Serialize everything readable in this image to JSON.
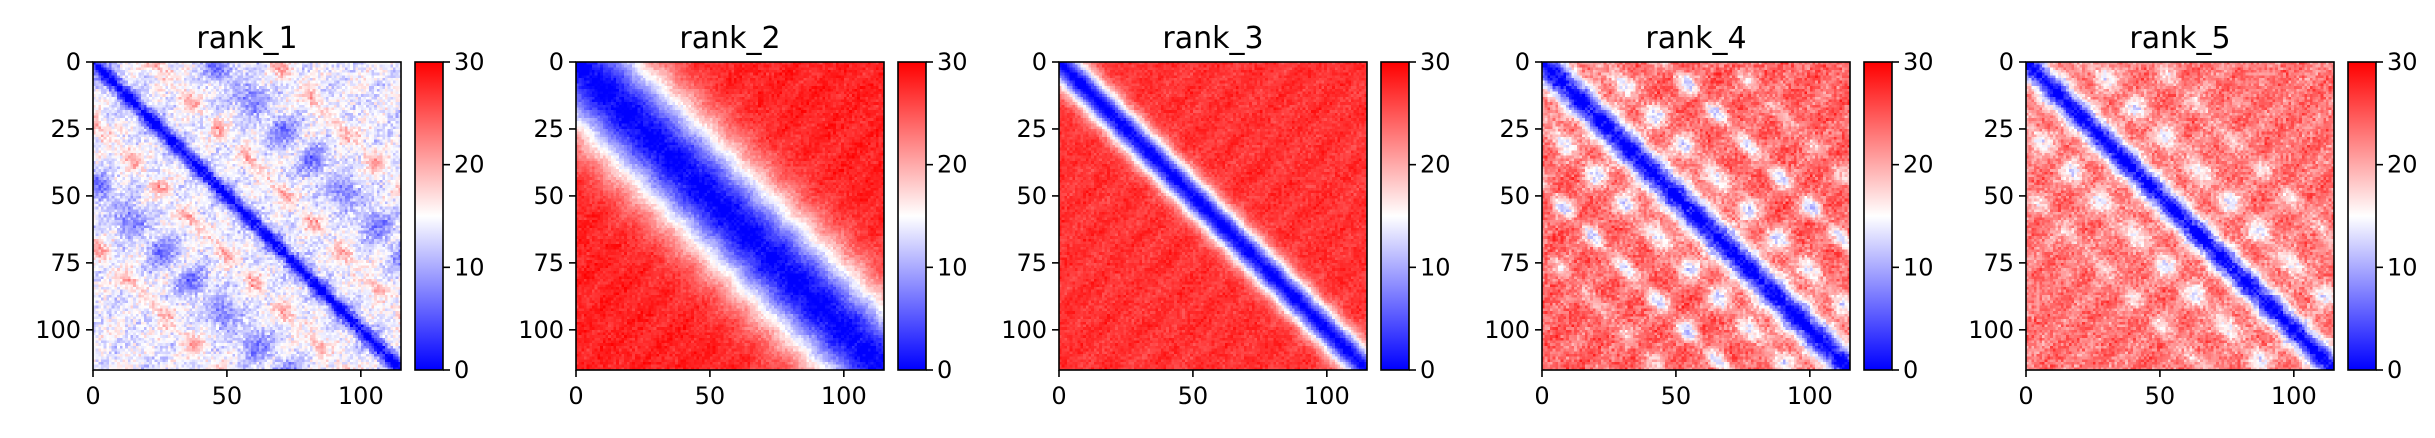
{
  "chart_data": [
    {
      "type": "heatmap",
      "title": "rank_1",
      "matrix_size": 115,
      "xlim": [
        0,
        115
      ],
      "ylim": [
        115,
        0
      ],
      "x_ticks": [
        0,
        50,
        100
      ],
      "y_ticks": [
        0,
        25,
        50,
        75,
        100
      ],
      "colorbar": {
        "min": 0,
        "max": 30,
        "ticks": [
          0,
          10,
          20,
          30
        ],
        "colormap": "bwr"
      },
      "diagonal_value": 0,
      "background_value": 14,
      "bands": [
        {
          "offset": 45,
          "value": 7,
          "width": 6
        },
        {
          "offset": 22,
          "value": 20,
          "width": 3
        },
        {
          "offset": 68,
          "value": 20,
          "width": 3
        }
      ],
      "texture": 4
    },
    {
      "type": "heatmap",
      "title": "rank_2",
      "matrix_size": 115,
      "xlim": [
        0,
        115
      ],
      "ylim": [
        115,
        0
      ],
      "x_ticks": [
        0,
        50,
        100
      ],
      "y_ticks": [
        0,
        25,
        50,
        75,
        100
      ],
      "colorbar": {
        "min": 0,
        "max": 30,
        "ticks": [
          0,
          10,
          20,
          30
        ],
        "colormap": "bwr"
      },
      "diagonal_value": 0,
      "background_value": 28,
      "near_diagonal_width": 18,
      "bands": [],
      "texture": 2
    },
    {
      "type": "heatmap",
      "title": "rank_3",
      "matrix_size": 115,
      "xlim": [
        0,
        115
      ],
      "ylim": [
        115,
        0
      ],
      "x_ticks": [
        0,
        50,
        100
      ],
      "y_ticks": [
        0,
        25,
        50,
        75,
        100
      ],
      "colorbar": {
        "min": 0,
        "max": 30,
        "ticks": [
          0,
          10,
          20,
          30
        ],
        "colormap": "bwr"
      },
      "diagonal_value": 0,
      "background_value": 27,
      "near_diagonal_width": 6,
      "bands": [],
      "texture": 2
    },
    {
      "type": "heatmap",
      "title": "rank_4",
      "matrix_size": 115,
      "xlim": [
        0,
        115
      ],
      "ylim": [
        115,
        0
      ],
      "x_ticks": [
        0,
        50,
        100
      ],
      "y_ticks": [
        0,
        25,
        50,
        75,
        100
      ],
      "colorbar": {
        "min": 0,
        "max": 30,
        "ticks": [
          0,
          10,
          20,
          30
        ],
        "colormap": "bwr"
      },
      "diagonal_value": 0,
      "background_value": 24,
      "near_diagonal_width": 6,
      "bands": [
        {
          "offset": 22,
          "value": 13,
          "width": 4
        },
        {
          "offset": 46,
          "value": 12,
          "width": 3
        },
        {
          "offset": 70,
          "value": 18,
          "width": 3
        }
      ],
      "texture": 4
    },
    {
      "type": "heatmap",
      "title": "rank_5",
      "matrix_size": 115,
      "xlim": [
        0,
        115
      ],
      "ylim": [
        115,
        0
      ],
      "x_ticks": [
        0,
        50,
        100
      ],
      "y_ticks": [
        0,
        25,
        50,
        75,
        100
      ],
      "colorbar": {
        "min": 0,
        "max": 30,
        "ticks": [
          0,
          10,
          20,
          30
        ],
        "colormap": "bwr"
      },
      "diagonal_value": 0,
      "background_value": 23,
      "near_diagonal_width": 5,
      "bands": [
        {
          "offset": 24,
          "value": 14,
          "width": 4
        },
        {
          "offset": 48,
          "value": 17,
          "width": 3
        }
      ],
      "texture": 4
    }
  ]
}
